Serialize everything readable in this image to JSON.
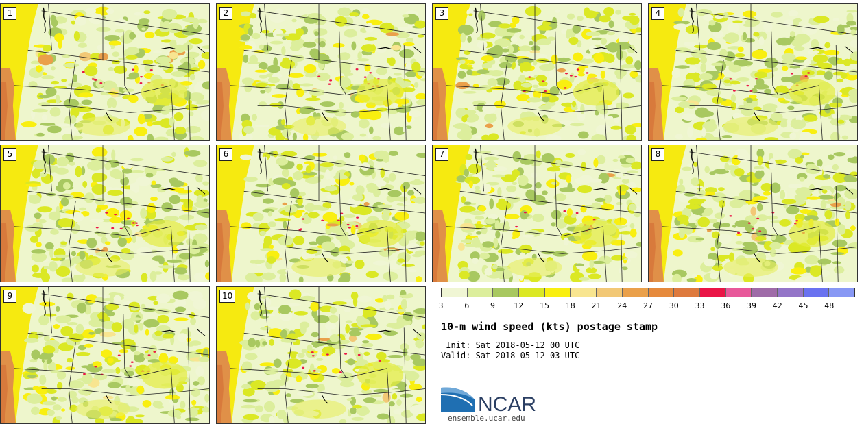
{
  "panels": [
    {
      "label": "1"
    },
    {
      "label": "2"
    },
    {
      "label": "3"
    },
    {
      "label": "4"
    },
    {
      "label": "5"
    },
    {
      "label": "6"
    },
    {
      "label": "7"
    },
    {
      "label": "8"
    },
    {
      "label": "9"
    },
    {
      "label": "10"
    }
  ],
  "colorbar": {
    "colors": [
      "#f0f6d4",
      "#dcee9c",
      "#a8c860",
      "#dbe824",
      "#f9ef10",
      "#f8e590",
      "#f2c875",
      "#eaa04a",
      "#e68a3c",
      "#de7a3e",
      "#ea1546",
      "#e8589a",
      "#9f6ba8",
      "#9475c8",
      "#6a72f0",
      "#8898f4",
      "#b4c8f4"
    ],
    "ticks": [
      "3",
      "6",
      "9",
      "12",
      "15",
      "18",
      "21",
      "24",
      "27",
      "30",
      "33",
      "36",
      "39",
      "42",
      "45",
      "48"
    ]
  },
  "title": "10-m wind speed (kts) postage stamp",
  "init_line": " Init: Sat 2018-05-12 00 UTC",
  "valid_line": "Valid: Sat 2018-05-12 03 UTC",
  "logo": {
    "text": "NCAR",
    "colors": {
      "blue": "#1f6fb2",
      "light": "#6fa8d8",
      "text": "#2b3f63"
    }
  },
  "site": "ensemble.ucar.edu"
}
